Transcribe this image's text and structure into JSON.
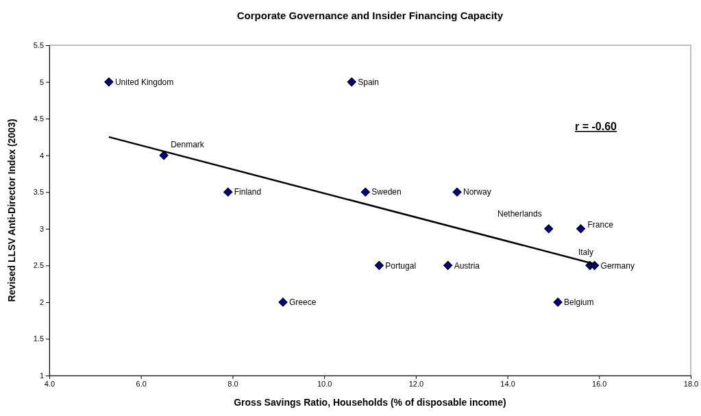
{
  "chart_data": {
    "type": "scatter",
    "title": "Corporate Governance and Insider Financing Capacity",
    "xlabel": "Gross Savings Ratio, Households (% of disposable income)",
    "ylabel": "Revised LLSV Anti-Director Index (2003)",
    "xlim": [
      4,
      18
    ],
    "xticks": [
      {
        "value": 4,
        "label": "4.0"
      },
      {
        "value": 6,
        "label": "6.0"
      },
      {
        "value": 8,
        "label": "8.0"
      },
      {
        "value": 10,
        "label": "10.0"
      },
      {
        "value": 12,
        "label": "12.0"
      },
      {
        "value": 14,
        "label": "14.0"
      },
      {
        "value": 16,
        "label": "16.0"
      },
      {
        "value": 18,
        "label": "18.0"
      }
    ],
    "ylim": [
      1,
      5.5
    ],
    "yticks": [
      1,
      1.5,
      2,
      2.5,
      3,
      3.5,
      4,
      4.5,
      5,
      5.5
    ],
    "grid": false,
    "annotations": [
      "r = -0.60"
    ],
    "series": [
      {
        "marker": "diamond",
        "color": "#000080",
        "x": [
          5.3,
          6.5,
          7.9,
          10.6,
          10.9,
          9.1,
          11.2,
          12.7,
          12.9,
          14.9,
          15.1,
          15.6,
          15.8,
          15.9
        ],
        "values": [
          5,
          4,
          3.5,
          5,
          3.5,
          2,
          2.5,
          2.5,
          3.5,
          3,
          2,
          3,
          2.5,
          2.5
        ],
        "value_labels": [
          "United Kingdom",
          "Denmark",
          "Finland",
          "Spain",
          "Sweden",
          "Greece",
          "Portugal",
          "Austria",
          "Norway",
          "Netherlands",
          "Belgium",
          "France",
          "Italy",
          "Germany"
        ]
      },
      {
        "type": "line",
        "marker": "none",
        "color": "#000000",
        "x": [
          5.3,
          15.9
        ],
        "values": [
          4.25,
          2.52
        ]
      }
    ]
  }
}
